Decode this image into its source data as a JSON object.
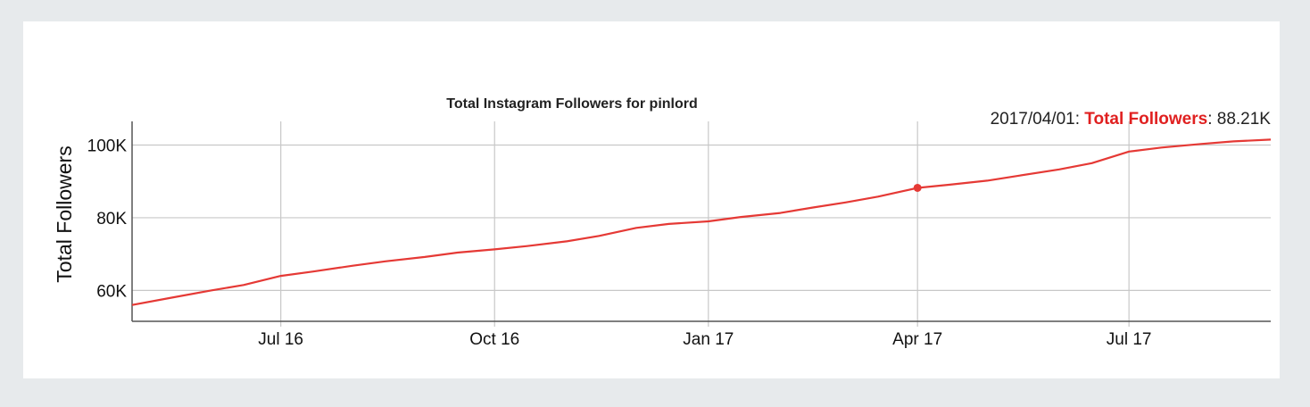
{
  "chart_data": {
    "type": "line",
    "title": "Total Instagram Followers for pinlord",
    "xlabel": "",
    "ylabel": "Total Followers",
    "x_tick_labels": [
      "Jul 16",
      "Oct 16",
      "Jan 17",
      "Apr 17",
      "Jul 17"
    ],
    "y_tick_labels": [
      "60K",
      "80K",
      "100K"
    ],
    "y_ticks": [
      60000,
      80000,
      100000
    ],
    "ylim": [
      51500,
      106500
    ],
    "xlim": [
      "2016-04-28",
      "2017-08-31"
    ],
    "x_ticks": [
      "2016-07-01",
      "2016-10-01",
      "2017-01-01",
      "2017-04-01",
      "2017-07-01"
    ],
    "grid": true,
    "series": [
      {
        "name": "Total Followers",
        "color": "#e53935",
        "x": [
          "2016-04-28",
          "2016-05-15",
          "2016-06-01",
          "2016-06-15",
          "2016-07-01",
          "2016-07-15",
          "2016-08-01",
          "2016-08-15",
          "2016-09-01",
          "2016-09-15",
          "2016-10-01",
          "2016-10-15",
          "2016-11-01",
          "2016-11-15",
          "2016-12-01",
          "2016-12-15",
          "2017-01-01",
          "2017-01-15",
          "2017-02-01",
          "2017-02-15",
          "2017-03-01",
          "2017-03-15",
          "2017-04-01",
          "2017-04-15",
          "2017-05-01",
          "2017-05-15",
          "2017-06-01",
          "2017-06-15",
          "2017-07-01",
          "2017-07-15",
          "2017-08-01",
          "2017-08-15",
          "2017-08-31"
        ],
        "values": [
          56000,
          58000,
          60000,
          61500,
          64000,
          65200,
          66800,
          68000,
          69200,
          70400,
          71300,
          72200,
          73500,
          75000,
          77200,
          78300,
          79000,
          80200,
          81300,
          82800,
          84200,
          85800,
          88210,
          89100,
          90200,
          91600,
          93300,
          95000,
          98200,
          99300,
          100300,
          101000,
          101500
        ]
      }
    ]
  },
  "readout": {
    "date": "2017/04/01",
    "key": "Total Followers",
    "value": "88.21K",
    "point_x": "2017-04-01",
    "point_y": 88210
  }
}
